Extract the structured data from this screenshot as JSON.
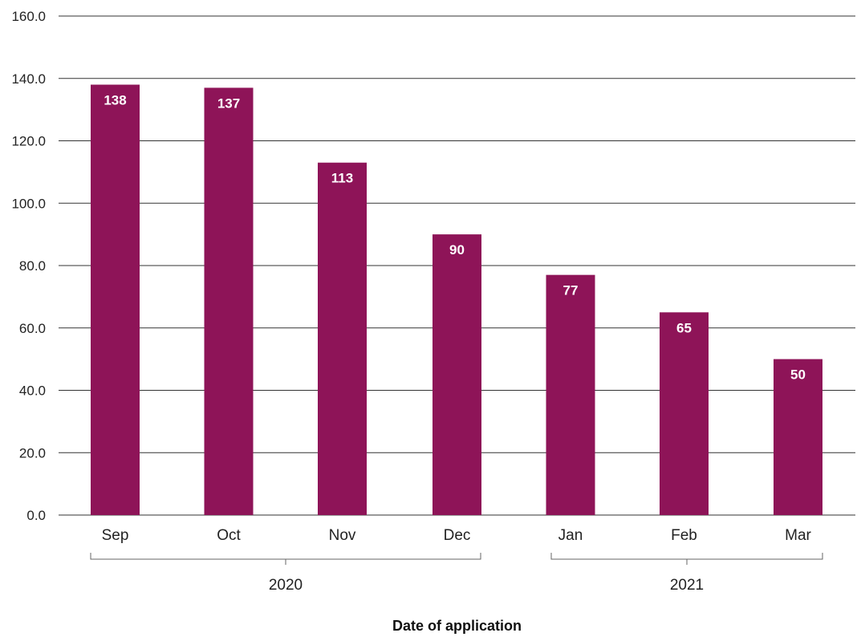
{
  "chart_data": {
    "type": "bar",
    "categories": [
      "Sep",
      "Oct",
      "Nov",
      "Dec",
      "Jan",
      "Feb",
      "Mar"
    ],
    "values": [
      138,
      137,
      113,
      90,
      77,
      65,
      50
    ],
    "data_labels": [
      "138",
      "137",
      "113",
      "90",
      "77",
      "65",
      "50"
    ],
    "groups": [
      {
        "label": "2020",
        "categories": [
          "Sep",
          "Oct",
          "Nov",
          "Dec"
        ]
      },
      {
        "label": "2021",
        "categories": [
          "Jan",
          "Feb",
          "Mar"
        ]
      }
    ],
    "y_ticks": [
      "0.0",
      "20.0",
      "40.0",
      "60.0",
      "80.0",
      "100.0",
      "120.0",
      "140.0",
      "160.0"
    ],
    "ylim": [
      0,
      160
    ],
    "xlabel": "Date of application",
    "ylabel": "",
    "title": "",
    "grid": true,
    "bar_color": "#8E1458"
  }
}
